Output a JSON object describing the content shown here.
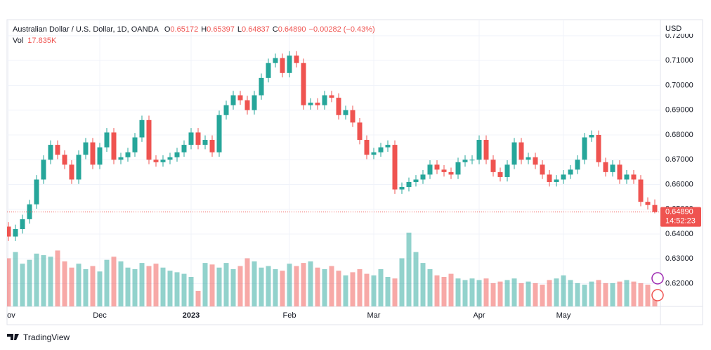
{
  "chart_data": {
    "type": "candlestick",
    "title": "Australian Dollar / U.S. Dollar, 1D, OANDA",
    "ohlc_labels": [
      {
        "key": "O",
        "value": "0.65172"
      },
      {
        "key": "H",
        "value": "0.65397"
      },
      {
        "key": "L",
        "value": "0.64837"
      },
      {
        "key": "C",
        "value": "0.64890"
      }
    ],
    "change_label": "−0.00282 (−0.43%)",
    "volume_label": {
      "key": "Vol",
      "value": "17.835K"
    },
    "currency": "USD",
    "last_price_label": "0.64890",
    "countdown": "14:52:23",
    "up_color": "#26a69a",
    "down_color": "#ef5350",
    "open": [
      0.643,
      0.639,
      0.642,
      0.646,
      0.652,
      0.662,
      0.67,
      0.676,
      0.672,
      0.668,
      0.662,
      0.672,
      0.677,
      0.668,
      0.675,
      0.681,
      0.67,
      0.671,
      0.673,
      0.679,
      0.686,
      0.67,
      0.669,
      0.67,
      0.671,
      0.673,
      0.676,
      0.681,
      0.676,
      0.678,
      0.673,
      0.688,
      0.692,
      0.696,
      0.694,
      0.69,
      0.696,
      0.703,
      0.709,
      0.711,
      0.705,
      0.712,
      0.709,
      0.692,
      0.693,
      0.692,
      0.696,
      0.695,
      0.688,
      0.69,
      0.685,
      0.678,
      0.672,
      0.673,
      0.675,
      0.676,
      0.658,
      0.659,
      0.661,
      0.662,
      0.664,
      0.668,
      0.666,
      0.665,
      0.664,
      0.669,
      0.67,
      0.67,
      0.678,
      0.67,
      0.665,
      0.663,
      0.668,
      0.677,
      0.67,
      0.671,
      0.668,
      0.664,
      0.661,
      0.662,
      0.664,
      0.666,
      0.67,
      0.679,
      0.68,
      0.669,
      0.665,
      0.668,
      0.662,
      0.664,
      0.662,
      0.653,
      0.65172
    ],
    "high": [
      0.6448,
      0.6438,
      0.6478,
      0.6538,
      0.6638,
      0.6718,
      0.6778,
      0.6778,
      0.6738,
      0.6698,
      0.6738,
      0.6788,
      0.6788,
      0.6768,
      0.6828,
      0.6828,
      0.6728,
      0.6748,
      0.6808,
      0.6878,
      0.6878,
      0.6718,
      0.6718,
      0.6728,
      0.6748,
      0.6778,
      0.6828,
      0.6828,
      0.6798,
      0.6798,
      0.6898,
      0.6938,
      0.6978,
      0.6978,
      0.6958,
      0.6978,
      0.7048,
      0.7108,
      0.7128,
      0.7128,
      0.7138,
      0.7138,
      0.7108,
      0.6948,
      0.6948,
      0.6978,
      0.6978,
      0.6968,
      0.6918,
      0.6918,
      0.6868,
      0.6798,
      0.6748,
      0.6768,
      0.6778,
      0.6778,
      0.6608,
      0.6628,
      0.6638,
      0.6658,
      0.6698,
      0.6698,
      0.6678,
      0.6668,
      0.6708,
      0.6718,
      0.6718,
      0.6798,
      0.6798,
      0.6718,
      0.6668,
      0.6698,
      0.6788,
      0.6788,
      0.6728,
      0.6728,
      0.6698,
      0.6658,
      0.6638,
      0.6658,
      0.6678,
      0.6718,
      0.6808,
      0.6818,
      0.6818,
      0.6708,
      0.6698,
      0.6698,
      0.6658,
      0.6658,
      0.6638,
      0.6548,
      0.65397
    ],
    "low": [
      0.6372,
      0.6372,
      0.6402,
      0.6442,
      0.6502,
      0.6602,
      0.6682,
      0.6702,
      0.6662,
      0.6602,
      0.6602,
      0.6702,
      0.6662,
      0.6662,
      0.6732,
      0.6682,
      0.6682,
      0.6692,
      0.6712,
      0.6772,
      0.6682,
      0.6672,
      0.6672,
      0.6682,
      0.6692,
      0.6712,
      0.6742,
      0.6742,
      0.6742,
      0.6712,
      0.6712,
      0.6862,
      0.6902,
      0.6922,
      0.6882,
      0.6882,
      0.6942,
      0.7012,
      0.7072,
      0.7032,
      0.7032,
      0.7072,
      0.6902,
      0.6902,
      0.6902,
      0.6902,
      0.6932,
      0.6862,
      0.6862,
      0.6832,
      0.6762,
      0.6702,
      0.6702,
      0.6712,
      0.6732,
      0.6562,
      0.6562,
      0.6572,
      0.6592,
      0.6602,
      0.6622,
      0.6642,
      0.6632,
      0.6622,
      0.6622,
      0.6672,
      0.6682,
      0.6682,
      0.6682,
      0.6632,
      0.6612,
      0.6612,
      0.6662,
      0.6682,
      0.6682,
      0.6662,
      0.6622,
      0.6592,
      0.6592,
      0.6602,
      0.6622,
      0.6642,
      0.6682,
      0.6772,
      0.6672,
      0.6632,
      0.6632,
      0.6602,
      0.6602,
      0.6602,
      0.6512,
      0.6499,
      0.64837
    ],
    "close": [
      0.639,
      0.642,
      0.646,
      0.652,
      0.662,
      0.67,
      0.676,
      0.672,
      0.668,
      0.662,
      0.672,
      0.677,
      0.668,
      0.675,
      0.681,
      0.67,
      0.671,
      0.673,
      0.679,
      0.686,
      0.67,
      0.669,
      0.67,
      0.671,
      0.673,
      0.676,
      0.681,
      0.676,
      0.678,
      0.673,
      0.688,
      0.692,
      0.696,
      0.694,
      0.69,
      0.696,
      0.703,
      0.709,
      0.711,
      0.705,
      0.712,
      0.709,
      0.692,
      0.693,
      0.692,
      0.696,
      0.695,
      0.688,
      0.69,
      0.685,
      0.678,
      0.672,
      0.673,
      0.675,
      0.676,
      0.658,
      0.659,
      0.661,
      0.662,
      0.664,
      0.668,
      0.666,
      0.665,
      0.664,
      0.669,
      0.67,
      0.67,
      0.678,
      0.67,
      0.665,
      0.663,
      0.668,
      0.677,
      0.67,
      0.671,
      0.668,
      0.664,
      0.661,
      0.662,
      0.664,
      0.666,
      0.67,
      0.679,
      0.68,
      0.669,
      0.665,
      0.668,
      0.662,
      0.664,
      0.662,
      0.653,
      0.65172,
      0.6489
    ],
    "volume": [
      62,
      70,
      55,
      60,
      68,
      66,
      64,
      72,
      58,
      50,
      55,
      48,
      52,
      45,
      60,
      64,
      58,
      50,
      48,
      56,
      52,
      55,
      50,
      46,
      44,
      42,
      38,
      20,
      56,
      54,
      50,
      56,
      48,
      52,
      62,
      58,
      50,
      52,
      48,
      46,
      55,
      52,
      56,
      58,
      50,
      48,
      52,
      46,
      40,
      44,
      48,
      42,
      40,
      48,
      38,
      36,
      62,
      95,
      70,
      56,
      48,
      40,
      38,
      42,
      36,
      34,
      36,
      34,
      36,
      30,
      32,
      34,
      36,
      30,
      32,
      30,
      28,
      34,
      36,
      40,
      34,
      30,
      28,
      32,
      34,
      30,
      30,
      32,
      34,
      32,
      30,
      28,
      17.835
    ],
    "time_labels": [
      {
        "at": 0,
        "label": "Nov"
      },
      {
        "at": 13,
        "label": "Dec"
      },
      {
        "at": 26,
        "label": "2023"
      },
      {
        "at": 40,
        "label": "Feb"
      },
      {
        "at": 52,
        "label": "Mar"
      },
      {
        "at": 67,
        "label": "Apr"
      },
      {
        "at": 79,
        "label": "May"
      }
    ],
    "ylim": [
      0.6108,
      0.7265
    ],
    "yticks": [
      {
        "value": 0.62,
        "label": "0.62000"
      },
      {
        "value": 0.63,
        "label": "0.63000"
      },
      {
        "value": 0.64,
        "label": "0.64000"
      },
      {
        "value": 0.65,
        "label": "0.65000"
      },
      {
        "value": 0.66,
        "label": "0.66000"
      },
      {
        "value": 0.67,
        "label": "0.67000"
      },
      {
        "value": 0.68,
        "label": "0.68000"
      },
      {
        "value": 0.69,
        "label": "0.69000"
      },
      {
        "value": 0.7,
        "label": "0.70000"
      },
      {
        "value": 0.71,
        "label": "0.71000"
      },
      {
        "value": 0.72,
        "label": "0.72000"
      }
    ],
    "grid": true,
    "brand": "TradingView"
  }
}
